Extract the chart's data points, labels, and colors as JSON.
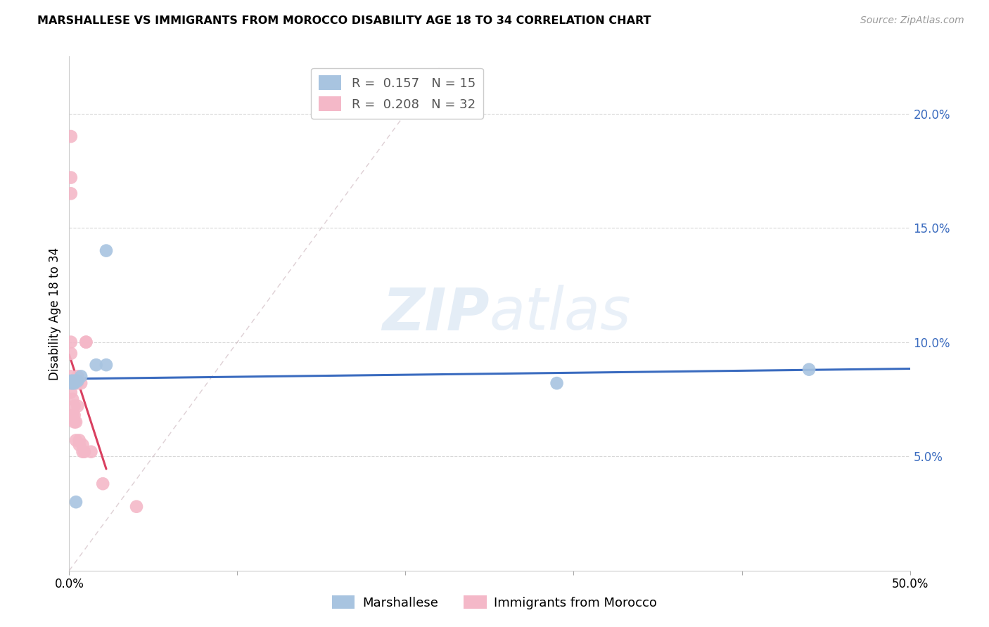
{
  "title": "MARSHALLESE VS IMMIGRANTS FROM MOROCCO DISABILITY AGE 18 TO 34 CORRELATION CHART",
  "source": "Source: ZipAtlas.com",
  "ylabel": "Disability Age 18 to 34",
  "x_min": 0.0,
  "x_max": 0.5,
  "y_min": 0.0,
  "y_max": 0.225,
  "x_ticks": [
    0.0,
    0.1,
    0.2,
    0.3,
    0.4,
    0.5
  ],
  "y_ticks": [
    0.05,
    0.1,
    0.15,
    0.2
  ],
  "y_tick_labels": [
    "5.0%",
    "10.0%",
    "15.0%",
    "20.0%"
  ],
  "blue_color": "#a8c4e0",
  "pink_color": "#f4b8c8",
  "blue_line_color": "#3a6bbf",
  "pink_line_color": "#d94060",
  "pink_dashed_color": "#c8b0b8",
  "legend_blue_r": "0.157",
  "legend_blue_n": "15",
  "legend_pink_r": "0.208",
  "legend_pink_n": "32",
  "legend_label_blue": "Marshallese",
  "legend_label_pink": "Immigrants from Morocco",
  "watermark_zip": "ZIP",
  "watermark_atlas": "atlas",
  "marshallese_x": [
    0.001,
    0.001,
    0.002,
    0.002,
    0.003,
    0.003,
    0.004,
    0.004,
    0.005,
    0.007,
    0.016,
    0.022,
    0.022,
    0.29,
    0.44
  ],
  "marshallese_y": [
    0.082,
    0.083,
    0.083,
    0.082,
    0.082,
    0.083,
    0.083,
    0.03,
    0.083,
    0.085,
    0.09,
    0.09,
    0.14,
    0.082,
    0.088
  ],
  "morocco_x": [
    0.001,
    0.001,
    0.001,
    0.001,
    0.001,
    0.001,
    0.001,
    0.002,
    0.002,
    0.002,
    0.002,
    0.002,
    0.003,
    0.003,
    0.003,
    0.003,
    0.004,
    0.004,
    0.005,
    0.005,
    0.005,
    0.006,
    0.006,
    0.007,
    0.008,
    0.008,
    0.009,
    0.01,
    0.01,
    0.013,
    0.02,
    0.04
  ],
  "morocco_y": [
    0.19,
    0.172,
    0.165,
    0.1,
    0.095,
    0.085,
    0.078,
    0.082,
    0.082,
    0.082,
    0.075,
    0.068,
    0.082,
    0.072,
    0.068,
    0.065,
    0.065,
    0.057,
    0.085,
    0.082,
    0.072,
    0.057,
    0.055,
    0.082,
    0.055,
    0.052,
    0.052,
    0.1,
    0.1,
    0.052,
    0.038,
    0.028
  ],
  "background_color": "#ffffff",
  "grid_color": "#d8d8d8"
}
